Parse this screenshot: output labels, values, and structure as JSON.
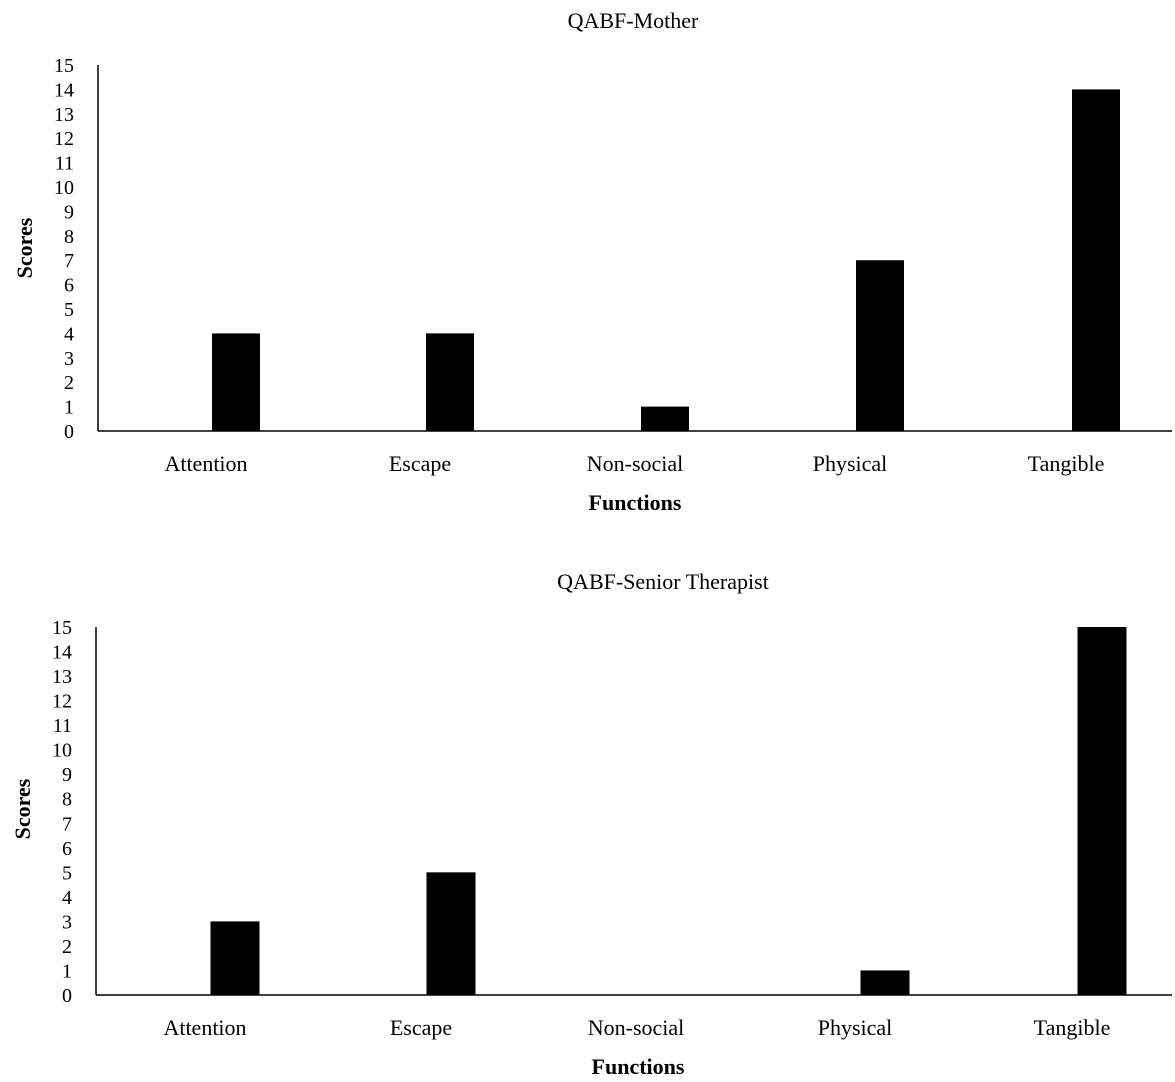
{
  "chart_data": [
    {
      "type": "bar",
      "title": "QABF-Mother",
      "xlabel": "Functions",
      "ylabel": "Scores",
      "categories": [
        "Attention",
        "Escape",
        "Non-social",
        "Physical",
        "Tangible"
      ],
      "values": [
        4,
        4,
        1,
        7,
        14
      ],
      "yticks": [
        "0",
        "1",
        "2",
        "3",
        "4",
        "5",
        "6",
        "7",
        "8",
        "9",
        "10",
        "11",
        "12",
        "13",
        "14",
        "15"
      ],
      "ylim": [
        0,
        15
      ],
      "grid": false,
      "bar_color": "#000000"
    },
    {
      "type": "bar",
      "title": "QABF-Senior Therapist",
      "xlabel": "Functions",
      "ylabel": "Scores",
      "categories": [
        "Attention",
        "Escape",
        "Non-social",
        "Physical",
        "Tangible"
      ],
      "values": [
        3,
        5,
        0,
        1,
        15
      ],
      "yticks": [
        "0",
        "1",
        "2",
        "3",
        "4",
        "5",
        "6",
        "7",
        "8",
        "9",
        "10",
        "11",
        "12",
        "13",
        "14",
        "15"
      ],
      "ylim": [
        0,
        15
      ],
      "grid": false,
      "bar_color": "#000000"
    }
  ]
}
